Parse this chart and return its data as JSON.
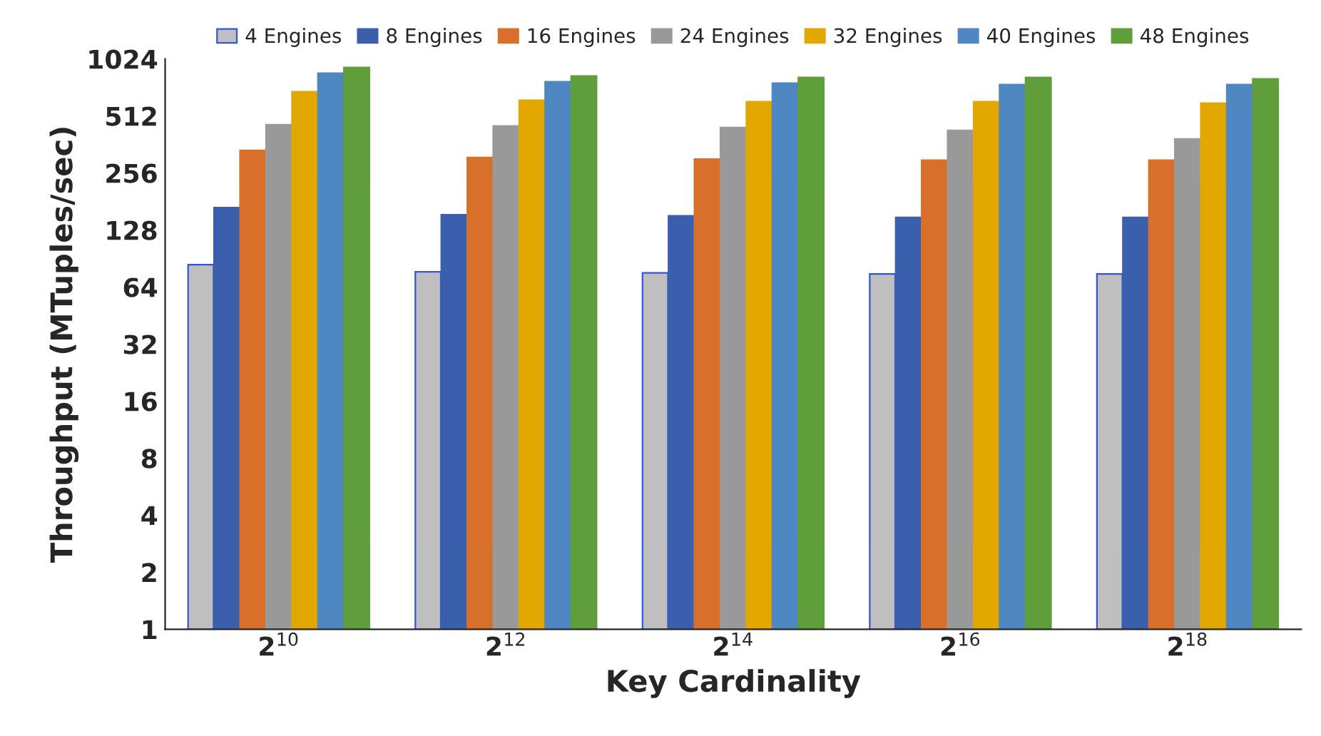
{
  "chart_data": {
    "type": "bar",
    "xlabel": "Key Cardinality",
    "ylabel": "Throughput (MTuples/sec)",
    "categories": [
      "2$^{10}$",
      "2$^{12}$",
      "2$^{14}$",
      "2$^{16}$",
      "2$^{18}$"
    ],
    "series": [
      {
        "name": "4 Engines",
        "color": "#bfbfbf",
        "values": [
          83,
          76,
          75,
          74,
          74
        ]
      },
      {
        "name": "8 Engines",
        "color": "#3a5fad",
        "values": [
          167,
          153,
          151,
          148,
          148
        ]
      },
      {
        "name": "16 Engines",
        "color": "#d86f2a",
        "values": [
          336,
          308,
          302,
          298,
          298
        ]
      },
      {
        "name": "24 Engines",
        "color": "#999999",
        "values": [
          459,
          452,
          443,
          428,
          386
        ]
      },
      {
        "name": "32 Engines",
        "color": "#e2a800",
        "values": [
          686,
          618,
          608,
          608,
          597
        ]
      },
      {
        "name": "40 Engines",
        "color": "#4f87c2",
        "values": [
          860,
          775,
          761,
          749,
          749
        ]
      },
      {
        "name": "48 Engines",
        "color": "#5f9e3a",
        "values": [
          922,
          831,
          816,
          816,
          802
        ]
      }
    ],
    "log": "y",
    "ylim": [
      1,
      1024
    ],
    "yticks": [
      1,
      2,
      4,
      8,
      16,
      32,
      64,
      128,
      256,
      512,
      1024
    ],
    "grid": false,
    "legend": "top"
  }
}
